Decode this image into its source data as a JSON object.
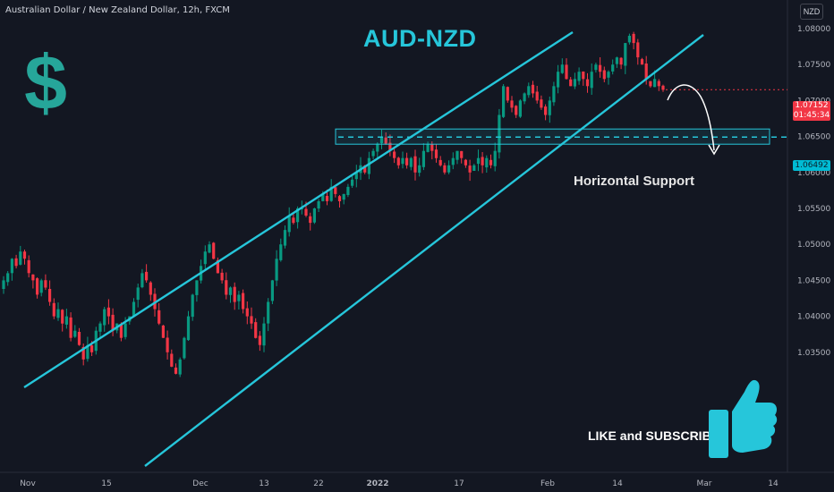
{
  "symbol_title": "Australian Dollar / New Zealand Dollar, 12h, FXCM",
  "currency_button": "NZD",
  "annotations": {
    "title": "AUD-NZD",
    "support_label": "Horizontal Support",
    "cta": "LIKE and SUBSCRIBE"
  },
  "badges": {
    "current_price": "1.07152",
    "countdown": "01:45:34",
    "support_price": "1.06492"
  },
  "icons": [
    "dollar-sign-icon",
    "thumbs-up-icon",
    "curved-arrow-icon"
  ],
  "colors": {
    "background": "#131722",
    "up_candle": "#089981",
    "down_candle": "#f23645",
    "annotation_cyan": "#26c6da",
    "dollar": "#26a69a"
  },
  "chart_data": {
    "type": "candlestick",
    "title": "AUD-NZD",
    "x_ticks": [
      "Nov",
      "15",
      "Dec",
      "13",
      "22",
      "2022",
      "17",
      "Feb",
      "14",
      "Mar",
      "14"
    ],
    "y_ticks": [
      "1.08000",
      "1.07500",
      "1.07000",
      "1.06500",
      "1.06000",
      "1.05500",
      "1.05000",
      "1.04500",
      "1.04000",
      "1.03500"
    ],
    "ylim": [
      1.031,
      1.0815
    ],
    "current_price": 1.07152,
    "horizontal_support": 1.06492,
    "series_close_approx": [
      1.045,
      1.046,
      1.048,
      1.047,
      1.049,
      1.048,
      1.046,
      1.045,
      1.043,
      1.045,
      1.044,
      1.042,
      1.04,
      1.041,
      1.039,
      1.04,
      1.037,
      1.038,
      1.036,
      1.034,
      1.036,
      1.035,
      1.038,
      1.039,
      1.041,
      1.04,
      1.038,
      1.039,
      1.037,
      1.039,
      1.04,
      1.042,
      1.044,
      1.046,
      1.045,
      1.043,
      1.041,
      1.039,
      1.037,
      1.035,
      1.033,
      1.032,
      1.034,
      1.037,
      1.04,
      1.043,
      1.045,
      1.047,
      1.049,
      1.05,
      1.048,
      1.046,
      1.045,
      1.043,
      1.044,
      1.042,
      1.043,
      1.041,
      1.04,
      1.039,
      1.037,
      1.036,
      1.039,
      1.042,
      1.045,
      1.048,
      1.05,
      1.052,
      1.054,
      1.053,
      1.055,
      1.055,
      1.054,
      1.053,
      1.055,
      1.056,
      1.057,
      1.056,
      1.058,
      1.057,
      1.056,
      1.057,
      1.058,
      1.059,
      1.06,
      1.061,
      1.06,
      1.062,
      1.063,
      1.064,
      1.065,
      1.064,
      1.063,
      1.062,
      1.061,
      1.062,
      1.061,
      1.062,
      1.06,
      1.061,
      1.063,
      1.064,
      1.063,
      1.062,
      1.061,
      1.06,
      1.061,
      1.062,
      1.063,
      1.062,
      1.061,
      1.06,
      1.061,
      1.062,
      1.061,
      1.062,
      1.061,
      1.063,
      1.068,
      1.072,
      1.07,
      1.069,
      1.068,
      1.07,
      1.071,
      1.072,
      1.071,
      1.07,
      1.069,
      1.068,
      1.07,
      1.072,
      1.074,
      1.075,
      1.073,
      1.072,
      1.073,
      1.074,
      1.073,
      1.072,
      1.074,
      1.075,
      1.074,
      1.073,
      1.074,
      1.075,
      1.076,
      1.075,
      1.078,
      1.079,
      1.078,
      1.076,
      1.075,
      1.073,
      1.072,
      1.073,
      1.072,
      1.0715
    ]
  }
}
